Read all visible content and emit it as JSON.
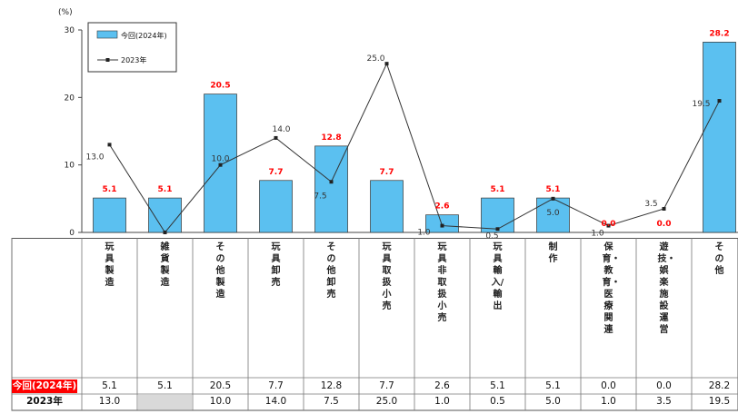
{
  "chart_data": {
    "type": "bar",
    "ylabel": "(%)",
    "ylim": [
      0,
      30
    ],
    "yticks": [
      0,
      10,
      20,
      30
    ],
    "categories": [
      "玩具製造",
      "雑貨製造",
      "その他製造",
      "玩具卸売",
      "その他卸売",
      "玩具取扱小売",
      "玩具非取扱小売",
      "玩具輸入/輸出",
      "制作",
      "保育・教育・医療関連",
      "遊技・娯楽施設運営",
      "その他"
    ],
    "series": [
      {
        "name": "今回(2024年)",
        "kind": "bar",
        "color": "#5bc0f0",
        "values": [
          5.1,
          5.1,
          20.5,
          7.7,
          12.8,
          7.7,
          2.6,
          5.1,
          5.1,
          0.0,
          0.0,
          28.2
        ],
        "labels": [
          "5.1",
          "5.1",
          "20.5",
          "7.7",
          "12.8",
          "7.7",
          "2.6",
          "5.1",
          "5.1",
          "0.0",
          "0.0",
          "28.2"
        ],
        "label_color": "#ff0000"
      },
      {
        "name": "2023年",
        "kind": "line",
        "color": "#333333",
        "values": [
          13.0,
          0.0,
          10.0,
          14.0,
          7.5,
          25.0,
          1.0,
          0.5,
          5.0,
          1.0,
          3.5,
          19.5
        ],
        "labels": [
          "13.0",
          "",
          "10.0",
          "14.0",
          "7.5",
          "25.0",
          "1.0",
          "0.5",
          "5.0",
          "1.0",
          "3.5",
          "19.5"
        ]
      }
    ],
    "legend_position": "top-left",
    "grid": false
  },
  "table": {
    "row_labels": [
      "今回(2024年)",
      "2023年"
    ],
    "rows": [
      [
        "5.1",
        "5.1",
        "20.5",
        "7.7",
        "12.8",
        "7.7",
        "2.6",
        "5.1",
        "5.1",
        "0.0",
        "0.0",
        "28.2"
      ],
      [
        "13.0",
        "",
        "10.0",
        "14.0",
        "7.5",
        "25.0",
        "1.0",
        "0.5",
        "5.0",
        "1.0",
        "3.5",
        "19.5"
      ]
    ],
    "row1_label_bg": "#ff0000"
  }
}
